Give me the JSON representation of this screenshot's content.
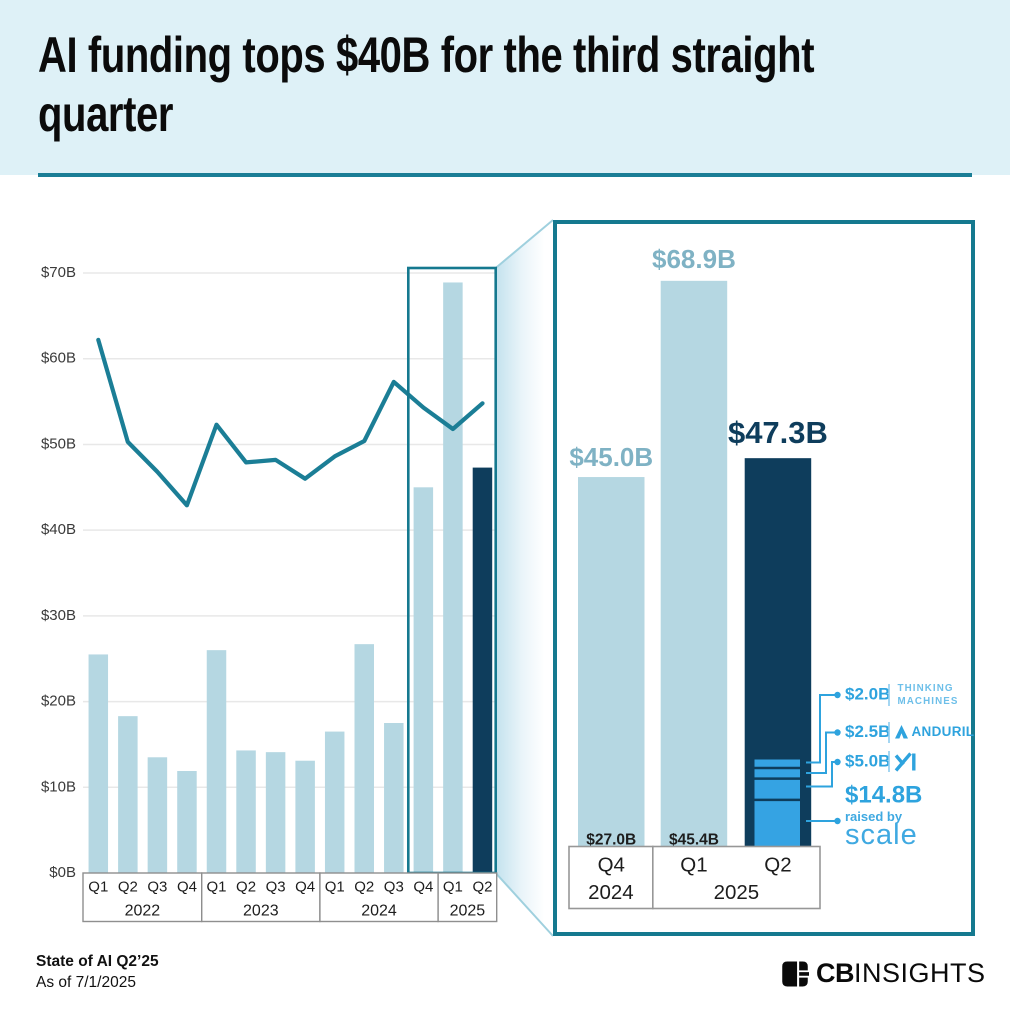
{
  "header": {
    "title_line1": "AI funding tops $40B for the third straight",
    "title_line2": "quarter"
  },
  "colors": {
    "header_bg": "#def1f7",
    "teal": "#1b7e96",
    "light_bar": "#b5d7e2",
    "dark_bar": "#0e3d5c",
    "bright_blue": "#2ea3de",
    "stack_fill": "#35a3e3",
    "value_label_light": "#7fb2c4",
    "thinking_machines_blue": "#6dbfe9",
    "grid": "#e8e8e8",
    "axis_gray": "#8f8f8f",
    "text_dark": "#1d1d1d"
  },
  "chart_data": [
    {
      "id": "ai-funding-by-quarter",
      "type": "bar+line",
      "title": "",
      "ylabel": "",
      "ylim": [
        0,
        70
      ],
      "ytick_labels": [
        "$0B",
        "$10B",
        "$20B",
        "$30B",
        "$40B",
        "$50B",
        "$60B",
        "$70B"
      ],
      "grid": true,
      "quarters": [
        "Q1",
        "Q2",
        "Q3",
        "Q4",
        "Q1",
        "Q2",
        "Q3",
        "Q4",
        "Q1",
        "Q2",
        "Q3",
        "Q4",
        "Q1",
        "Q2"
      ],
      "year_groups": [
        {
          "label": "2022",
          "span": 4
        },
        {
          "label": "2023",
          "span": 4
        },
        {
          "label": "2024",
          "span": 4
        },
        {
          "label": "2025",
          "span": 2
        }
      ],
      "series": [
        {
          "name": "quarterly-funding-bars",
          "type": "bar",
          "values": [
            25.5,
            18.3,
            13.5,
            11.9,
            26.0,
            14.3,
            14.1,
            13.1,
            16.5,
            26.7,
            17.5,
            45.0,
            68.9,
            47.3
          ],
          "dark_index": 13
        },
        {
          "name": "trend-line",
          "type": "line",
          "values": [
            62.2,
            50.3,
            46.8,
            42.9,
            52.3,
            47.9,
            48.2,
            46.0,
            48.6,
            50.4,
            57.3,
            54.3,
            51.8,
            54.8
          ]
        }
      ],
      "highlight_box_quarters": [
        "Q4 2024",
        "Q1 2025",
        "Q2 2025"
      ]
    },
    {
      "id": "recent-quarters-zoom",
      "type": "bar",
      "categories": [
        "Q4",
        "Q1",
        "Q2"
      ],
      "year_groups": [
        {
          "label": "2024",
          "span": 1
        },
        {
          "label": "2025",
          "span": 2
        }
      ],
      "values": [
        45.0,
        68.9,
        47.3
      ],
      "value_labels": [
        "$45.0B",
        "$68.9B",
        "$47.3B"
      ],
      "bottom_labels": [
        "$27.0B",
        "$45.4B",
        ""
      ],
      "q2_stack_segments_bottom_up": [
        {
          "value": 14.8,
          "label": "$14.8B",
          "company": "Scale",
          "caption": "raised by",
          "logo": "scale-logo",
          "logo_text": "scale"
        },
        {
          "value": 5.0,
          "label": "$5.0B",
          "company": "xAI",
          "logo": "xai-logo"
        },
        {
          "value": 2.5,
          "label": "$2.5B",
          "company": "Anduril",
          "logo": "anduril-logo",
          "wordmark": "ANDURIL"
        },
        {
          "value": 2.0,
          "label": "$2.0B",
          "company": "Thinking Machines",
          "wordmark_lines": [
            "THINKING",
            "MACHINES"
          ]
        }
      ]
    }
  ],
  "footer": {
    "report_title": "State of AI Q2’25",
    "as_of": "As of 7/1/2025"
  },
  "brand": {
    "logo": "cbinsights-logo",
    "bold": "CB",
    "light": "INSIGHTS"
  }
}
